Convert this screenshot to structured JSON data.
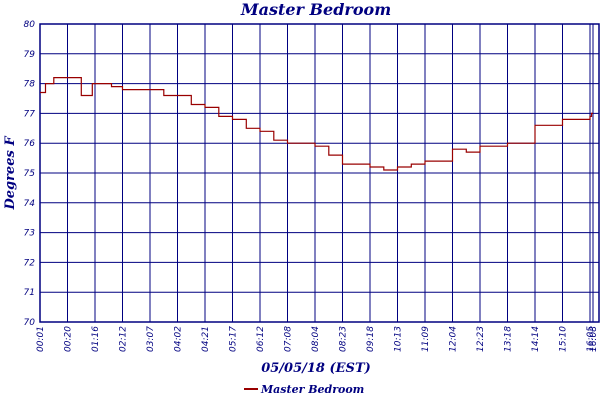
{
  "chart_data": {
    "type": "line",
    "title": "Master Bedroom",
    "xlabel": "05/05/18 (EST)",
    "ylabel": "Degrees F",
    "ylim": [
      70,
      80
    ],
    "yticks": [
      70,
      71,
      72,
      73,
      74,
      75,
      76,
      77,
      78,
      79,
      80
    ],
    "xticks": [
      "00:01",
      "00:20",
      "01:16",
      "02:12",
      "03:07",
      "04:02",
      "04:21",
      "05:17",
      "06:12",
      "07:08",
      "08:04",
      "08:23",
      "09:18",
      "10:13",
      "11:09",
      "12:04",
      "12:23",
      "13:18",
      "14:14",
      "15:10",
      "16:05",
      "16:08"
    ],
    "grid": true,
    "legend_position": "bottom-center",
    "series": [
      {
        "name": "Master Bedroom",
        "color": "#990000",
        "x": [
          0.0,
          0.2,
          0.5,
          1.0,
          1.5,
          1.9,
          2.0,
          2.3,
          2.6,
          3.0,
          3.5,
          4.0,
          4.5,
          5.0,
          5.5,
          6.0,
          6.5,
          7.0,
          7.5,
          8.0,
          8.5,
          9.0,
          9.5,
          10.0,
          10.5,
          11.0,
          11.5,
          12.0,
          12.5,
          13.0,
          13.5,
          14.0,
          14.5,
          15.0,
          15.5,
          16.0,
          16.5,
          17.0,
          17.5,
          18.0,
          18.5,
          19.0,
          19.5,
          20.0,
          20.5,
          20.85,
          20.92,
          21.0
        ],
        "y": [
          77.7,
          78.0,
          78.2,
          78.2,
          77.6,
          78.0,
          78.0,
          78.0,
          77.9,
          77.8,
          77.8,
          77.8,
          77.6,
          77.6,
          77.3,
          77.2,
          76.9,
          76.8,
          76.5,
          76.4,
          76.1,
          76.0,
          76.0,
          75.9,
          75.6,
          75.3,
          75.3,
          75.2,
          75.1,
          75.2,
          75.3,
          75.4,
          75.4,
          75.8,
          75.7,
          75.9,
          75.9,
          76.0,
          76.0,
          76.6,
          76.6,
          76.8,
          76.8,
          76.9,
          77.0,
          77.0,
          77.0,
          77.0
        ]
      }
    ]
  }
}
